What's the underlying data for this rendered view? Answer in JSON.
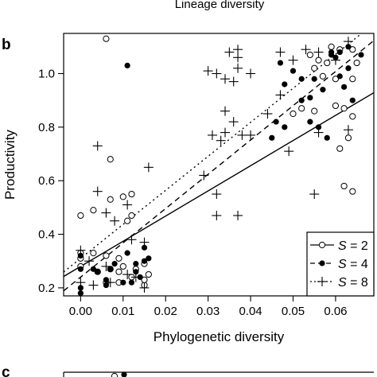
{
  "panel_b_label": "b",
  "panel_c_label": "c",
  "prev_panel_xlabel": "Lineage diversity",
  "chart_data": {
    "type": "scatter",
    "title": "",
    "xlabel": "Phylogenetic diversity",
    "ylabel": "Productivity",
    "xlim": [
      -0.004,
      0.069
    ],
    "ylim": [
      0.17,
      1.15
    ],
    "xticks": [
      "0.00",
      "0.01",
      "0.02",
      "0.03",
      "0.04",
      "0.05",
      "0.06"
    ],
    "yticks": [
      "0.2",
      "0.4",
      "0.6",
      "0.8",
      "1.0"
    ],
    "grid": false,
    "legend_position": "bottom-right",
    "legend": [
      {
        "label": "S = 2",
        "marker": "open-circle",
        "line": "solid"
      },
      {
        "label": "S = 4",
        "marker": "filled-circle",
        "line": "dashed"
      },
      {
        "label": "S = 8",
        "marker": "plus",
        "line": "dotted"
      }
    ],
    "series": [
      {
        "marker": "open-circle",
        "fit_line": {
          "intercept": 0.28,
          "slope": 9.4
        },
        "points": [
          [
            0.006,
            1.13
          ],
          [
            0.0,
            0.47
          ],
          [
            0.003,
            0.49
          ],
          [
            0.0,
            0.33
          ],
          [
            0.0,
            0.31
          ],
          [
            0.003,
            0.33
          ],
          [
            0.006,
            0.32
          ],
          [
            0.009,
            0.31
          ],
          [
            0.0,
            0.28
          ],
          [
            0.004,
            0.26
          ],
          [
            0.007,
            0.27
          ],
          [
            0.01,
            0.28
          ],
          [
            0.013,
            0.27
          ],
          [
            0.015,
            0.29
          ],
          [
            0.012,
            0.24
          ],
          [
            0.006,
            0.22
          ],
          [
            0.009,
            0.22
          ],
          [
            0.015,
            0.21
          ],
          [
            0.01,
            0.54
          ],
          [
            0.007,
            0.53
          ],
          [
            0.007,
            0.68
          ],
          [
            0.012,
            0.55
          ],
          [
            0.012,
            0.47
          ],
          [
            0.011,
            0.45
          ],
          [
            0.015,
            0.23
          ],
          [
            0.009,
            0.26
          ],
          [
            0.016,
            0.25
          ],
          [
            0.05,
            0.85
          ],
          [
            0.052,
            0.87
          ],
          [
            0.055,
            0.86
          ],
          [
            0.057,
            0.99
          ],
          [
            0.056,
            1.05
          ],
          [
            0.054,
            1.07
          ],
          [
            0.055,
            1.02
          ],
          [
            0.059,
            1.1
          ],
          [
            0.061,
            1.09
          ],
          [
            0.06,
            0.98
          ],
          [
            0.06,
            0.88
          ],
          [
            0.062,
            0.87
          ],
          [
            0.061,
            0.72
          ],
          [
            0.063,
            0.76
          ],
          [
            0.064,
            0.84
          ],
          [
            0.064,
            0.98
          ],
          [
            0.065,
            1.04
          ],
          [
            0.064,
            1.09
          ],
          [
            0.058,
            1.04
          ],
          [
            0.062,
            0.58
          ],
          [
            0.064,
            0.56
          ]
        ]
      },
      {
        "marker": "filled-circle",
        "fit_line": {
          "intercept": 0.24,
          "slope": 12.8
        },
        "points": [
          [
            0.011,
            1.03
          ],
          [
            0.0,
            0.2
          ],
          [
            0.0,
            0.18
          ],
          [
            0.0,
            0.27
          ],
          [
            0.003,
            0.27
          ],
          [
            0.006,
            0.23
          ],
          [
            0.006,
            0.21
          ],
          [
            0.01,
            0.22
          ],
          [
            0.012,
            0.22
          ],
          [
            0.013,
            0.26
          ],
          [
            0.015,
            0.3
          ],
          [
            0.016,
            0.31
          ],
          [
            0.0,
            0.32
          ],
          [
            0.007,
            0.27
          ],
          [
            0.011,
            0.33
          ],
          [
            0.014,
            0.24
          ],
          [
            0.015,
            0.35
          ],
          [
            0.008,
            0.29
          ],
          [
            0.004,
            0.26
          ],
          [
            0.013,
            0.29
          ],
          [
            0.048,
            0.96
          ],
          [
            0.052,
            0.98
          ],
          [
            0.05,
            1.01
          ],
          [
            0.052,
            0.9
          ],
          [
            0.054,
            0.91
          ],
          [
            0.057,
            0.94
          ],
          [
            0.059,
            1.07
          ],
          [
            0.06,
            1.06
          ],
          [
            0.061,
            0.99
          ],
          [
            0.063,
            1.02
          ],
          [
            0.063,
            1.1
          ],
          [
            0.066,
            1.07
          ],
          [
            0.059,
            1.08
          ],
          [
            0.047,
            1.04
          ],
          [
            0.046,
            0.82
          ],
          [
            0.048,
            0.8
          ],
          [
            0.056,
            0.8
          ],
          [
            0.058,
            0.76
          ],
          [
            0.062,
            0.95
          ],
          [
            0.064,
            0.9
          ],
          [
            0.054,
            0.82
          ],
          [
            0.061,
            1.08
          ],
          [
            0.045,
            0.76
          ],
          [
            0.055,
            0.98
          ]
        ]
      },
      {
        "marker": "plus",
        "fit_line": {
          "intercept": 0.31,
          "slope": 12.7
        },
        "points": [
          [
            0.0,
            0.34
          ],
          [
            0.002,
            0.3
          ],
          [
            0.008,
            0.45
          ],
          [
            0.012,
            0.38
          ],
          [
            0.015,
            0.37
          ],
          [
            0.007,
            0.22
          ],
          [
            0.004,
            0.56
          ],
          [
            0.006,
            0.48
          ],
          [
            0.011,
            0.51
          ],
          [
            0.004,
            0.73
          ],
          [
            0.016,
            0.65
          ],
          [
            0.0,
            0.22
          ],
          [
            0.003,
            0.21
          ],
          [
            0.006,
            0.28
          ],
          [
            0.011,
            0.25
          ],
          [
            0.013,
            0.24
          ],
          [
            0.015,
            0.2
          ],
          [
            0.03,
            1.01
          ],
          [
            0.032,
            1.0
          ],
          [
            0.034,
            0.98
          ],
          [
            0.036,
            0.97
          ],
          [
            0.037,
            1.02
          ],
          [
            0.04,
            1.0
          ],
          [
            0.035,
            1.08
          ],
          [
            0.037,
            1.06
          ],
          [
            0.031,
            0.77
          ],
          [
            0.033,
            0.75
          ],
          [
            0.034,
            0.78
          ],
          [
            0.036,
            0.82
          ],
          [
            0.038,
            0.77
          ],
          [
            0.04,
            0.77
          ],
          [
            0.029,
            0.62
          ],
          [
            0.032,
            0.55
          ],
          [
            0.032,
            0.47
          ],
          [
            0.037,
            0.47
          ],
          [
            0.044,
            0.85
          ],
          [
            0.047,
            1.08
          ],
          [
            0.05,
            1.05
          ],
          [
            0.053,
            1.09
          ],
          [
            0.056,
            1.08
          ],
          [
            0.06,
            1.05
          ],
          [
            0.063,
            1.12
          ],
          [
            0.049,
            0.71
          ],
          [
            0.055,
            0.55
          ],
          [
            0.056,
            0.78
          ],
          [
            0.047,
            0.92
          ],
          [
            0.063,
            0.79
          ],
          [
            0.034,
            0.86
          ],
          [
            0.037,
            1.09
          ]
        ]
      }
    ]
  }
}
